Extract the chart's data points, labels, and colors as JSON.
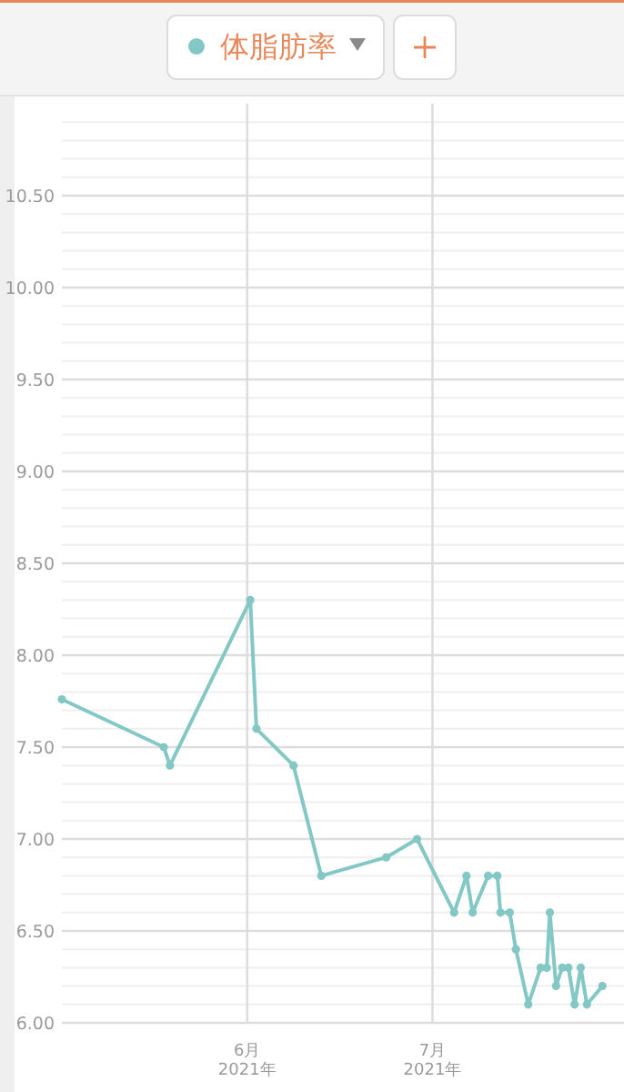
{
  "chart_data": {
    "type": "line",
    "legend": "top",
    "grid": true,
    "marker": "circle",
    "line_style": "solid",
    "x": [
      "2021-05-02",
      "2021-05-18T12:00",
      "2021-05-19T12:00",
      "2021-06-01T12:00",
      "2021-06-02T12:00",
      "2021-06-08T12:00",
      "2021-06-13",
      "2021-06-23T12:00",
      "2021-06-28T12:00",
      "2021-07-04T12:00",
      "2021-07-06T12:00",
      "2021-07-07T12:00",
      "2021-07-10",
      "2021-07-11T12:00",
      "2021-07-12",
      "2021-07-13T12:00",
      "2021-07-14T12:00",
      "2021-07-16T12:00",
      "2021-07-18T12:00",
      "2021-07-19T12:00",
      "2021-07-20",
      "2021-07-21",
      "2021-07-22",
      "2021-07-23",
      "2021-07-24",
      "2021-07-25",
      "2021-07-26",
      "2021-07-28T12:00"
    ],
    "series": [
      {
        "name": "体脂肪率",
        "color": "#84c8c5",
        "values": [
          7.76,
          7.5,
          7.4,
          8.3,
          7.6,
          7.4,
          6.8,
          6.9,
          7.0,
          6.6,
          6.8,
          6.6,
          6.8,
          6.8,
          6.6,
          6.6,
          6.4,
          6.1,
          6.3,
          6.3,
          6.6,
          6.2,
          6.3,
          6.3,
          6.1,
          6.3,
          6.1,
          6.2
        ]
      }
    ],
    "xlim": [
      "2021-05-02",
      "2021-08-01"
    ],
    "xticks": [
      {
        "value": "2021-06-01",
        "label": "6月\n2021年"
      },
      {
        "value": "2021-07-01",
        "label": "7月\n2021年"
      }
    ],
    "ylim": [
      6,
      11
    ],
    "yticks": [
      {
        "value": 6,
        "label": "6.00"
      },
      {
        "value": 6.1,
        "label": null
      },
      {
        "value": 6.2,
        "label": null
      },
      {
        "value": 6.3,
        "label": null
      },
      {
        "value": 6.4,
        "label": null
      },
      {
        "value": 6.5,
        "label": "6.50"
      },
      {
        "value": 6.6,
        "label": null
      },
      {
        "value": 6.7,
        "label": null
      },
      {
        "value": 6.8,
        "label": null
      },
      {
        "value": 6.9,
        "label": null
      },
      {
        "value": 7,
        "label": "7.00"
      },
      {
        "value": 7.1,
        "label": null
      },
      {
        "value": 7.2,
        "label": null
      },
      {
        "value": 7.3,
        "label": null
      },
      {
        "value": 7.4,
        "label": null
      },
      {
        "value": 7.5,
        "label": "7.50"
      },
      {
        "value": 7.6,
        "label": null
      },
      {
        "value": 7.7,
        "label": null
      },
      {
        "value": 7.8,
        "label": null
      },
      {
        "value": 7.9,
        "label": null
      },
      {
        "value": 8,
        "label": "8.00"
      },
      {
        "value": 8.1,
        "label": null
      },
      {
        "value": 8.2,
        "label": null
      },
      {
        "value": 8.3,
        "label": null
      },
      {
        "value": 8.4,
        "label": null
      },
      {
        "value": 8.5,
        "label": "8.50"
      },
      {
        "value": 8.6,
        "label": null
      },
      {
        "value": 8.7,
        "label": null
      },
      {
        "value": 8.8,
        "label": null
      },
      {
        "value": 8.9,
        "label": null
      },
      {
        "value": 9,
        "label": "9.00"
      },
      {
        "value": 9.1,
        "label": null
      },
      {
        "value": 9.2,
        "label": null
      },
      {
        "value": 9.3,
        "label": null
      },
      {
        "value": 9.4,
        "label": null
      },
      {
        "value": 9.5,
        "label": "9.50"
      },
      {
        "value": 9.6,
        "label": null
      },
      {
        "value": 9.7,
        "label": null
      },
      {
        "value": 9.8,
        "label": null
      },
      {
        "value": 9.9,
        "label": null
      },
      {
        "value": 10,
        "label": "10.00"
      },
      {
        "value": 10.1,
        "label": null
      },
      {
        "value": 10.2,
        "label": null
      },
      {
        "value": 10.3,
        "label": null
      },
      {
        "value": 10.4,
        "label": null
      },
      {
        "value": 10.5,
        "label": "10.50"
      },
      {
        "value": 10.6,
        "label": null
      },
      {
        "value": 10.7,
        "label": null
      },
      {
        "value": 10.8,
        "label": null
      },
      {
        "value": 10.9,
        "label": null
      }
    ]
  }
}
